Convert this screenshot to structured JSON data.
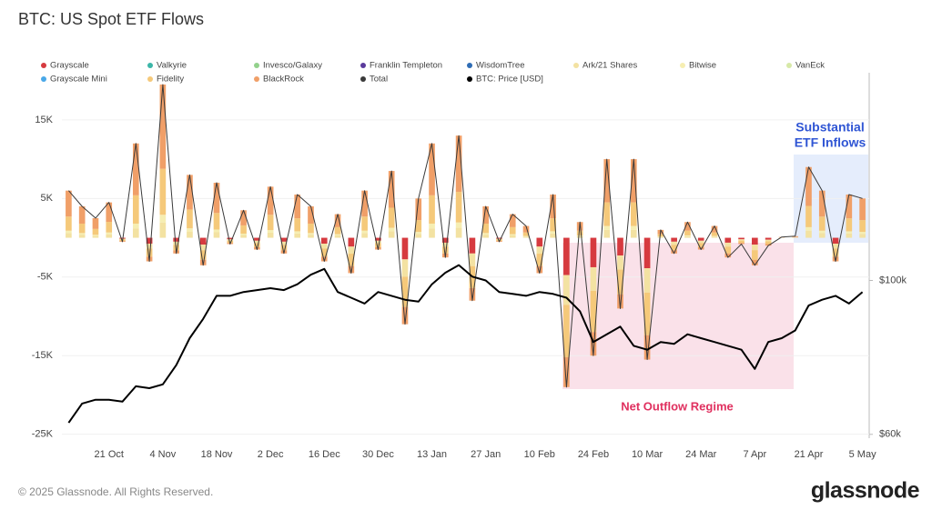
{
  "chart_data": {
    "type": "bar",
    "title": "BTC: US Spot ETF Flows",
    "footer": "© 2025 Glassnode. All Rights Reserved.",
    "brand": "glassnode",
    "inflow_note": [
      "Substantial",
      "ETF Inflows"
    ],
    "outflow_note": "Net Outflow Regime",
    "grid": true,
    "categories": [
      null,
      null,
      null,
      "21 Oct",
      null,
      null,
      null,
      "4 Nov",
      null,
      null,
      null,
      "18 Nov",
      null,
      null,
      null,
      "2 Dec",
      null,
      null,
      null,
      "16 Dec",
      null,
      null,
      null,
      "30 Dec",
      null,
      null,
      null,
      "13 Jan",
      null,
      null,
      null,
      "27 Jan",
      null,
      null,
      null,
      "10 Feb",
      null,
      null,
      null,
      "24 Feb",
      null,
      null,
      null,
      "10 Mar",
      null,
      null,
      null,
      "24 Mar",
      null,
      null,
      null,
      "7 Apr",
      null,
      null,
      null,
      "21 Apr",
      null,
      null,
      null,
      "5 May"
    ],
    "ylim": [
      -25500,
      21000
    ],
    "yticks": [
      {
        "value": 15000,
        "label": "15K"
      },
      {
        "value": 5000,
        "label": "5K"
      },
      {
        "value": -5000,
        "label": "-5K"
      },
      {
        "value": -15000,
        "label": "-15K"
      },
      {
        "value": -25000,
        "label": "-25K"
      }
    ],
    "y2lim": [
      59000,
      154000
    ],
    "y2ticks": [
      {
        "value": 100000,
        "label": "$100k"
      },
      {
        "value": 60000,
        "label": "$60k"
      }
    ],
    "series": [
      {
        "name": "Grayscale",
        "type": "bar",
        "color": "#d63a3f",
        "values": [
          0,
          0,
          0,
          0,
          -125,
          0,
          -750,
          0,
          -500,
          0,
          -875,
          0,
          -200,
          0,
          -375,
          0,
          -500,
          0,
          0,
          -750,
          0,
          -1125,
          0,
          -375,
          0,
          -2750,
          0,
          0,
          -625,
          0,
          -2000,
          0,
          -125,
          0,
          0,
          -1125,
          0,
          -4750,
          0,
          -3750,
          0,
          -2250,
          0,
          -3875,
          0,
          -500,
          0,
          -375,
          0,
          -625,
          -200,
          -875,
          -250,
          0,
          0,
          0,
          0,
          -750,
          0,
          0
        ]
      },
      {
        "name": "Valkyrie",
        "type": "bar",
        "color": "#3cb6a8",
        "values": [
          0,
          0,
          0,
          0,
          0,
          0,
          0,
          0,
          0,
          0,
          0,
          0,
          0,
          0,
          0,
          0,
          0,
          0,
          0,
          0,
          0,
          0,
          0,
          0,
          0,
          0,
          0,
          0,
          0,
          0,
          0,
          0,
          0,
          0,
          0,
          0,
          0,
          0,
          0,
          0,
          0,
          0,
          0,
          0,
          0,
          0,
          0,
          0,
          0,
          0,
          0,
          0,
          0,
          0,
          0,
          0,
          0,
          0,
          0,
          0
        ]
      },
      {
        "name": "Invesco/Galaxy",
        "type": "bar",
        "color": "#93d18c",
        "values": [
          0,
          0,
          0,
          0,
          0,
          0,
          0,
          0,
          0,
          0,
          0,
          0,
          0,
          0,
          0,
          0,
          0,
          0,
          0,
          0,
          0,
          0,
          0,
          0,
          0,
          0,
          0,
          0,
          0,
          0,
          0,
          0,
          0,
          0,
          0,
          0,
          0,
          0,
          0,
          0,
          0,
          0,
          0,
          0,
          0,
          0,
          0,
          0,
          0,
          0,
          0,
          0,
          0,
          0,
          0,
          0,
          0,
          0,
          0,
          0
        ]
      },
      {
        "name": "Franklin Templeton",
        "type": "bar",
        "color": "#5a3a9c",
        "values": [
          0,
          0,
          0,
          0,
          0,
          0,
          0,
          0,
          0,
          0,
          0,
          0,
          0,
          0,
          0,
          0,
          0,
          0,
          0,
          0,
          0,
          0,
          0,
          0,
          0,
          0,
          0,
          0,
          0,
          0,
          0,
          0,
          0,
          0,
          0,
          0,
          0,
          0,
          0,
          0,
          0,
          0,
          0,
          0,
          0,
          0,
          0,
          0,
          0,
          0,
          0,
          0,
          0,
          0,
          0,
          0,
          0,
          0,
          0,
          0
        ]
      },
      {
        "name": "WisdomTree",
        "type": "bar",
        "color": "#2f6db5",
        "values": [
          0,
          0,
          0,
          0,
          0,
          0,
          0,
          0,
          0,
          0,
          0,
          0,
          0,
          0,
          0,
          0,
          0,
          0,
          0,
          0,
          0,
          0,
          0,
          0,
          0,
          0,
          0,
          0,
          0,
          0,
          0,
          0,
          0,
          0,
          0,
          0,
          0,
          0,
          0,
          0,
          0,
          0,
          0,
          0,
          0,
          0,
          0,
          0,
          0,
          0,
          0,
          0,
          0,
          0,
          0,
          0,
          0,
          0,
          0,
          0
        ]
      },
      {
        "name": "Ark/21 Shares",
        "type": "bar",
        "color": "#f3e2a2",
        "values": [
          600,
          400,
          250,
          450,
          -100,
          1200,
          -600,
          1950,
          -400,
          800,
          -700,
          700,
          -160,
          350,
          -300,
          650,
          -400,
          550,
          400,
          -600,
          300,
          -900,
          600,
          -300,
          850,
          -2200,
          500,
          1200,
          -500,
          1300,
          -1600,
          400,
          -100,
          300,
          150,
          -900,
          550,
          -3800,
          200,
          -3000,
          1000,
          -1800,
          1000,
          -3100,
          100,
          -400,
          200,
          -300,
          150,
          -500,
          -160,
          -700,
          -200,
          10,
          20,
          900,
          600,
          -600,
          550,
          500
        ]
      },
      {
        "name": "Bitwise",
        "type": "bar",
        "color": "#f6eeb2",
        "values": [
          300,
          200,
          125,
          225,
          0,
          600,
          0,
          975,
          0,
          400,
          0,
          350,
          0,
          175,
          0,
          325,
          0,
          275,
          200,
          0,
          150,
          0,
          300,
          0,
          425,
          0,
          250,
          600,
          0,
          650,
          0,
          200,
          0,
          150,
          75,
          0,
          275,
          0,
          100,
          0,
          500,
          0,
          500,
          0,
          50,
          0,
          100,
          0,
          75,
          0,
          0,
          0,
          0,
          5,
          10,
          450,
          300,
          0,
          275,
          250
        ]
      },
      {
        "name": "VanEck",
        "type": "bar",
        "color": "#d7e9a8",
        "values": [
          0,
          0,
          0,
          0,
          0,
          0,
          0,
          0,
          0,
          0,
          0,
          0,
          0,
          0,
          0,
          0,
          0,
          0,
          0,
          0,
          0,
          0,
          0,
          0,
          0,
          0,
          0,
          0,
          0,
          0,
          0,
          0,
          0,
          0,
          0,
          0,
          0,
          0,
          0,
          0,
          0,
          0,
          0,
          0,
          0,
          0,
          0,
          0,
          0,
          0,
          0,
          0,
          0,
          0,
          0,
          0,
          0,
          0,
          0,
          0
        ]
      },
      {
        "name": "Grayscale Mini",
        "type": "bar",
        "color": "#4aa8e8",
        "values": [
          0,
          0,
          0,
          0,
          0,
          0,
          0,
          0,
          0,
          0,
          0,
          0,
          0,
          0,
          0,
          0,
          0,
          0,
          0,
          0,
          0,
          0,
          0,
          0,
          0,
          0,
          0,
          0,
          0,
          0,
          0,
          0,
          0,
          0,
          0,
          0,
          0,
          0,
          0,
          0,
          0,
          0,
          0,
          0,
          0,
          0,
          0,
          0,
          0,
          0,
          0,
          0,
          0,
          0,
          0,
          0,
          0,
          0,
          0,
          0
        ]
      },
      {
        "name": "Fidelity",
        "type": "bar",
        "color": "#f5c97a",
        "values": [
          1800,
          1200,
          750,
          1350,
          -175,
          3600,
          -1050,
          5850,
          -700,
          2400,
          -1225,
          2100,
          -280,
          1050,
          -525,
          1950,
          -700,
          1650,
          1200,
          -1050,
          900,
          -1575,
          1800,
          -525,
          2550,
          -3850,
          1500,
          3600,
          -875,
          3900,
          -2800,
          1200,
          -175,
          900,
          450,
          -1575,
          1650,
          -6650,
          600,
          -5250,
          3000,
          -3150,
          3000,
          -5425,
          300,
          -700,
          600,
          -525,
          450,
          -875,
          -280,
          -1225,
          -350,
          30,
          60,
          2700,
          1800,
          -1050,
          1650,
          1500
        ]
      },
      {
        "name": "BlackRock",
        "type": "bar",
        "color": "#f09f68",
        "values": [
          3300,
          2200,
          1375,
          2475,
          -100,
          6600,
          -600,
          10725,
          -400,
          4400,
          -700,
          3850,
          -160,
          1925,
          -300,
          3575,
          -400,
          3025,
          2200,
          -600,
          1650,
          -900,
          3300,
          -300,
          4675,
          -2200,
          2750,
          6600,
          -500,
          7150,
          -1600,
          2200,
          -100,
          1650,
          825,
          -900,
          3025,
          -3800,
          1100,
          -3000,
          5500,
          -1800,
          5500,
          -3100,
          550,
          -400,
          1100,
          -300,
          825,
          -500,
          -160,
          -700,
          -200,
          55,
          110,
          4950,
          3300,
          -600,
          3025,
          2750
        ]
      },
      {
        "name": "Total",
        "type": "line",
        "color": "#3a3a3a",
        "values": [
          6000,
          4000,
          2500,
          4500,
          -500,
          12000,
          -3000,
          19500,
          -2000,
          8000,
          -3500,
          7000,
          -800,
          3500,
          -1500,
          6500,
          -2000,
          5500,
          4000,
          -3000,
          3000,
          -4500,
          6000,
          -1500,
          8500,
          -11000,
          5000,
          12000,
          -2500,
          13000,
          -8000,
          4000,
          -500,
          3000,
          1500,
          -4500,
          5500,
          -19000,
          2000,
          -15000,
          10000,
          -9000,
          10000,
          -15500,
          1000,
          -2000,
          2000,
          -1500,
          1500,
          -2500,
          -800,
          -3500,
          -1000,
          100,
          200,
          9000,
          6000,
          -3000,
          5500,
          5000
        ]
      },
      {
        "name": "BTC: Price [USD]",
        "type": "line",
        "axis": "y2",
        "color": "#000000",
        "values": [
          63000,
          68000,
          69000,
          69000,
          68500,
          72500,
          72000,
          73000,
          78000,
          85000,
          90000,
          96000,
          96000,
          97000,
          97500,
          98000,
          97500,
          99000,
          101500,
          103000,
          97000,
          95500,
          94000,
          97000,
          96000,
          95000,
          94500,
          99000,
          102000,
          104000,
          101000,
          100000,
          97000,
          96500,
          96000,
          97000,
          96500,
          95500,
          92000,
          84000,
          86000,
          88000,
          83000,
          82000,
          84000,
          83500,
          86000,
          85000,
          84000,
          83000,
          82000,
          77000,
          84000,
          85000,
          87000,
          93500,
          95000,
          96000,
          94000,
          97000
        ]
      }
    ]
  }
}
